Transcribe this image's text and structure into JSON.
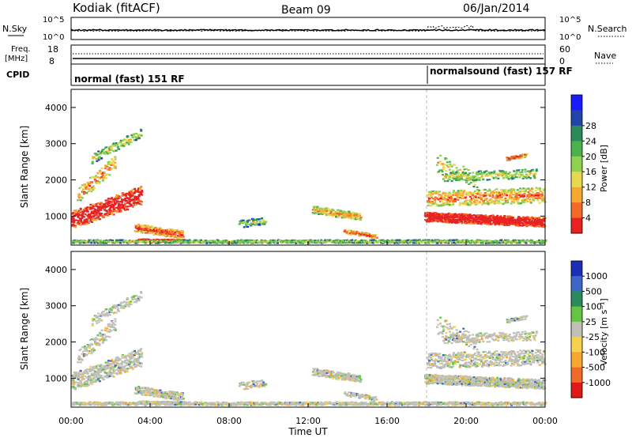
{
  "header": {
    "station": "Kodiak (fitACF)",
    "beam": "Beam 09",
    "date": "06/Jan/2014"
  },
  "top_panel": {
    "left_label": "N.Sky",
    "right_label": "N.Search",
    "ticks_left": [
      "10^5",
      "10^0"
    ],
    "ticks_right": [
      "10^5",
      "10^0"
    ]
  },
  "freq_panel": {
    "left_label_1": "Freq.",
    "left_label_2": "[MHz]",
    "right_label": "Nave",
    "ticks_left": [
      "18",
      "8"
    ],
    "ticks_right": [
      "60",
      "0"
    ]
  },
  "cpid_panel": {
    "label": "CPID",
    "mode_1": "normal (fast) 151 RF",
    "mode_2": "normalsound (fast) 157 RF"
  },
  "chart_data": [
    {
      "type": "heatmap",
      "name": "power",
      "ylabel": "Slant Range [km]",
      "ylim": [
        200,
        4500
      ],
      "yticks": [
        "1000",
        "2000",
        "3000",
        "4000"
      ],
      "colorbar_label": "Power [dB]",
      "colorbar_ticks": [
        "4",
        "8",
        "12",
        "16",
        "20",
        "24",
        "28"
      ],
      "colors": [
        "#1a1aff",
        "#2244aa",
        "#2a8a5a",
        "#4cb04c",
        "#8ed050",
        "#e8d850",
        "#f7a630",
        "#f36a28",
        "#e82222"
      ],
      "x": [
        "00:00",
        "04:00",
        "08:00",
        "12:00",
        "16:00",
        "20:00",
        "00:00"
      ]
    },
    {
      "type": "heatmap",
      "name": "velocity",
      "ylabel": "Slant Range [km]",
      "xlabel": "Time UT",
      "ylim": [
        200,
        4500
      ],
      "yticks": [
        "1000",
        "2000",
        "3000",
        "4000"
      ],
      "colorbar_label": "Velocity [m s⁻¹]",
      "colorbar_ticks": [
        "1000",
        "500",
        "100",
        "25",
        "-25",
        "-100",
        "-500",
        "-1000"
      ],
      "colors": [
        "#1c2db8",
        "#3c67c8",
        "#2a8a5a",
        "#66c444",
        "#c0c0b8",
        "#f8d050",
        "#f7a630",
        "#f36a28",
        "#e01818"
      ],
      "x": [
        "00:00",
        "04:00",
        "08:00",
        "12:00",
        "16:00",
        "20:00",
        "00:00"
      ]
    }
  ]
}
